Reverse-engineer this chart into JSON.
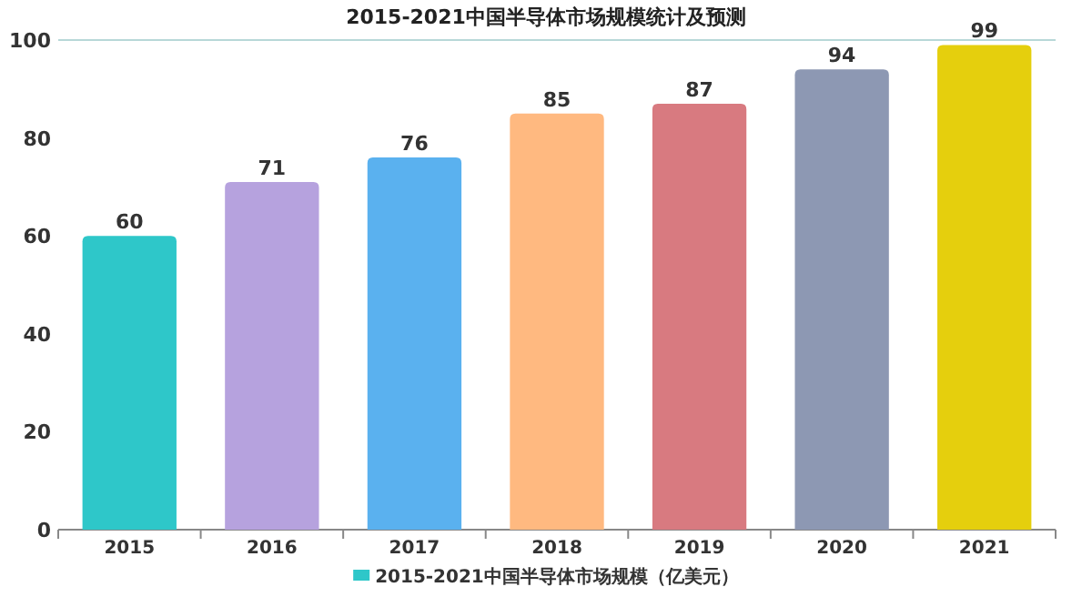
{
  "chart_data": {
    "type": "bar",
    "title": "2015-2021中国半导体市场规模统计及预测",
    "categories": [
      "2015",
      "2016",
      "2017",
      "2018",
      "2019",
      "2020",
      "2021"
    ],
    "series": [
      {
        "name": "2015-2021中国半导体市场规模（亿美元）",
        "color": "#2ec7c9",
        "colors": [
          "#2ec7c9",
          "#b6a2de",
          "#5ab1ef",
          "#ffb980",
          "#d87a80",
          "#8d98b3",
          "#e5cf0d"
        ],
        "values": [
          60,
          71,
          76,
          85,
          87,
          94,
          99
        ]
      }
    ],
    "ylim": [
      0,
      100
    ],
    "yticks": [
      0,
      20,
      40,
      60,
      80,
      100
    ],
    "data_labels": true,
    "legend": "bottom"
  }
}
